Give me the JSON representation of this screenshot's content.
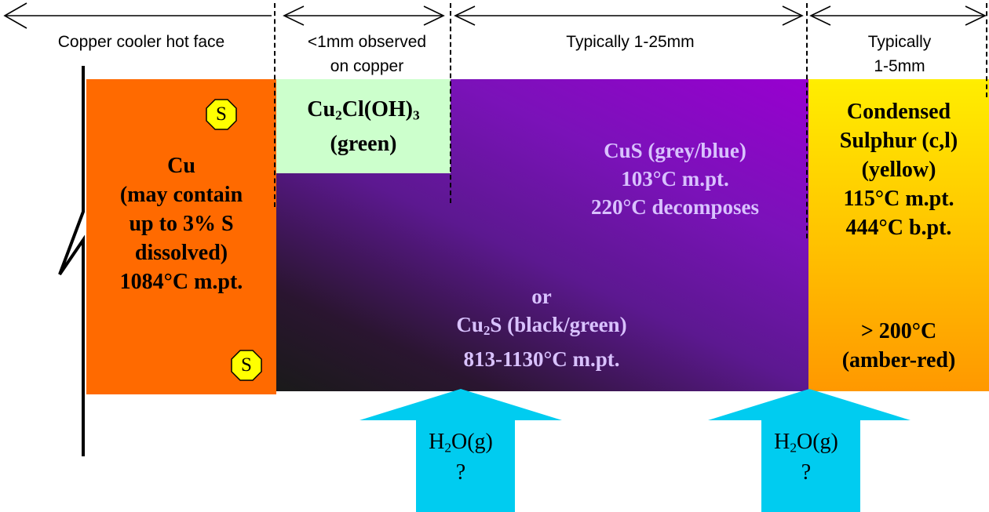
{
  "headers": {
    "copper_face": "Copper cooler hot face",
    "chloride_line1": "<1mm observed",
    "chloride_line2": "on copper",
    "sulfide": "Typically 1-25mm",
    "sulphur_line1": "Typically",
    "sulphur_line2": "1-5mm"
  },
  "cu_region": {
    "lines": [
      "Cu",
      "(may contain",
      "up to 3% S",
      "dissolved)",
      "1084°C m.pt."
    ],
    "badge": "S"
  },
  "chloride_region": {
    "formula_prefix": "Cu",
    "formula_sub1": "2",
    "formula_mid": "Cl(OH)",
    "formula_sub2": "3",
    "color_note": "(green)"
  },
  "sulfide_region": {
    "cus_lines": [
      "CuS (grey/blue)",
      "103°C m.pt.",
      "220°C decomposes"
    ],
    "or": "or",
    "cu2s_prefix": "Cu",
    "cu2s_sub": "2",
    "cu2s_suffix": "S (black/green)",
    "cu2s_mpt": "813-1130°C m.pt."
  },
  "sulphur_region": {
    "lines": [
      "Condensed",
      "Sulphur (c,l)",
      "(yellow)",
      "115°C m.pt.",
      "444°C b.pt."
    ],
    "hot_lines": [
      "> 200°C",
      "(amber-red)"
    ]
  },
  "arrows": [
    {
      "prefix": "H",
      "sub": "2",
      "suffix": "O(g)",
      "question": "?"
    },
    {
      "prefix": "H",
      "sub": "2",
      "suffix": "O(g)",
      "question": "?"
    }
  ],
  "colors": {
    "copper": "#ff6a00",
    "chloride": "#ccffcc",
    "sulfide_dark": "#1a1a1a",
    "sulfide_purple": "#9800d0",
    "sulphur_yellow": "#ffee00",
    "sulphur_orange": "#ff9800",
    "arrow": "#00ccf0",
    "badge": "#ffff00"
  }
}
